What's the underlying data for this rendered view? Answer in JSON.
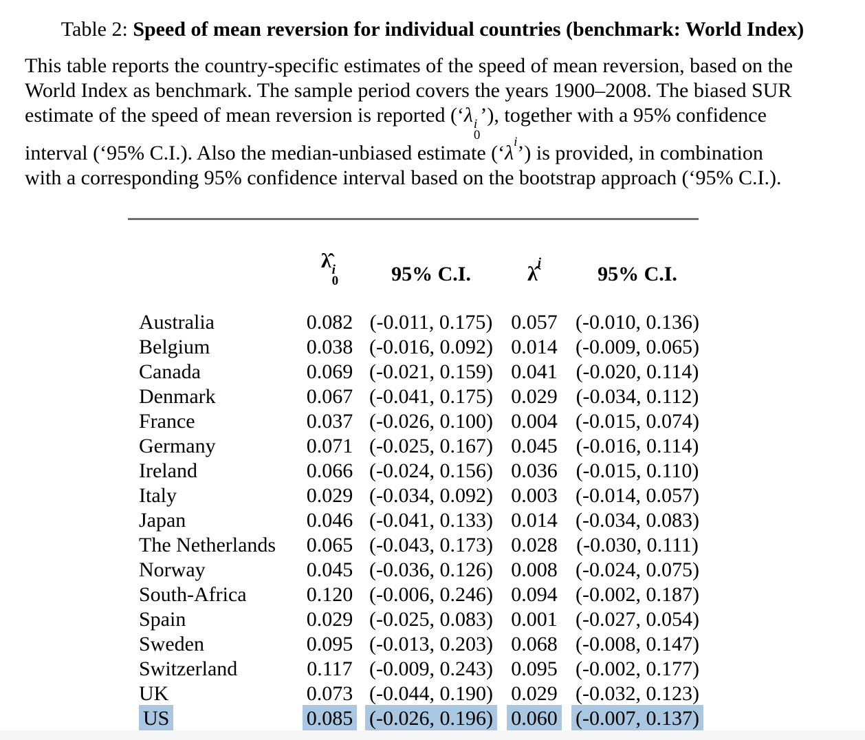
{
  "title": {
    "prefix": "Table 2: ",
    "bold": "Speed of mean reversion for individual countries (benchmark: World Index)"
  },
  "caption": {
    "seg1": "This table reports the country-specific estimates of the speed of mean reversion, based on the World Index as benchmark. The sample period covers the years 1900–2008. The biased SUR estimate of the speed of mean reversion is reported (‘",
    "math1": {
      "base": "λ",
      "sup": "i",
      "sub": "0"
    },
    "seg2": "’), together with a 95% confidence interval (‘95% C.I.). Also the median-unbiased estimate (‘",
    "math2": {
      "base": "λ",
      "sup": "i"
    },
    "seg3": "’) is provided, in combination with a corresponding 95% confidence interval based on the bootstrap approach (‘95% C.I.)."
  },
  "table": {
    "highlight_color": "#a9c7e0",
    "headers": {
      "country": "",
      "col1": {
        "base": "λ̂",
        "sup": "i",
        "sub": "0"
      },
      "col2": "95% C.I.",
      "col3": {
        "base": "λ̂",
        "sup": "i"
      },
      "col4": "95% C.I."
    },
    "rows": [
      {
        "country": "Australia",
        "lambda0": "0.082",
        "ci0": "(-0.011, 0.175)",
        "lambda": "0.057",
        "ci": "(-0.010, 0.136)",
        "highlighted": false
      },
      {
        "country": "Belgium",
        "lambda0": "0.038",
        "ci0": "(-0.016, 0.092)",
        "lambda": "0.014",
        "ci": "(-0.009, 0.065)",
        "highlighted": false
      },
      {
        "country": "Canada",
        "lambda0": "0.069",
        "ci0": "(-0.021, 0.159)",
        "lambda": "0.041",
        "ci": "(-0.020, 0.114)",
        "highlighted": false
      },
      {
        "country": "Denmark",
        "lambda0": "0.067",
        "ci0": "(-0.041, 0.175)",
        "lambda": "0.029",
        "ci": "(-0.034, 0.112)",
        "highlighted": false
      },
      {
        "country": "France",
        "lambda0": "0.037",
        "ci0": "(-0.026, 0.100)",
        "lambda": "0.004",
        "ci": "(-0.015, 0.074)",
        "highlighted": false
      },
      {
        "country": "Germany",
        "lambda0": "0.071",
        "ci0": "(-0.025, 0.167)",
        "lambda": "0.045",
        "ci": "(-0.016, 0.114)",
        "highlighted": false
      },
      {
        "country": "Ireland",
        "lambda0": "0.066",
        "ci0": "(-0.024, 0.156)",
        "lambda": "0.036",
        "ci": "(-0.015, 0.110)",
        "highlighted": false
      },
      {
        "country": "Italy",
        "lambda0": "0.029",
        "ci0": "(-0.034, 0.092)",
        "lambda": "0.003",
        "ci": "(-0.014, 0.057)",
        "highlighted": false
      },
      {
        "country": "Japan",
        "lambda0": "0.046",
        "ci0": "(-0.041, 0.133)",
        "lambda": "0.014",
        "ci": "(-0.034, 0.083)",
        "highlighted": false
      },
      {
        "country": "The Netherlands",
        "lambda0": "0.065",
        "ci0": "(-0.043, 0.173)",
        "lambda": "0.028",
        "ci": "(-0.030, 0.111)",
        "highlighted": false
      },
      {
        "country": "Norway",
        "lambda0": "0.045",
        "ci0": "(-0.036, 0.126)",
        "lambda": "0.008",
        "ci": "(-0.024, 0.075)",
        "highlighted": false
      },
      {
        "country": "South-Africa",
        "lambda0": "0.120",
        "ci0": "(-0.006, 0.246)",
        "lambda": "0.094",
        "ci": "(-0.002, 0.187)",
        "highlighted": false
      },
      {
        "country": "Spain",
        "lambda0": "0.029",
        "ci0": "(-0.025, 0.083)",
        "lambda": "0.001",
        "ci": "(-0.027, 0.054)",
        "highlighted": false
      },
      {
        "country": "Sweden",
        "lambda0": "0.095",
        "ci0": "(-0.013, 0.203)",
        "lambda": "0.068",
        "ci": "(-0.008, 0.147)",
        "highlighted": false
      },
      {
        "country": "Switzerland",
        "lambda0": "0.117",
        "ci0": "(-0.009, 0.243)",
        "lambda": "0.095",
        "ci": "(-0.002, 0.177)",
        "highlighted": false
      },
      {
        "country": "UK",
        "lambda0": "0.073",
        "ci0": "(-0.044, 0.190)",
        "lambda": "0.029",
        "ci": "(-0.032, 0.123)",
        "highlighted": false
      },
      {
        "country": "US",
        "lambda0": "0.085",
        "ci0": "(-0.026, 0.196)",
        "lambda": "0.060",
        "ci": "(-0.007, 0.137)",
        "highlighted": true
      }
    ]
  }
}
